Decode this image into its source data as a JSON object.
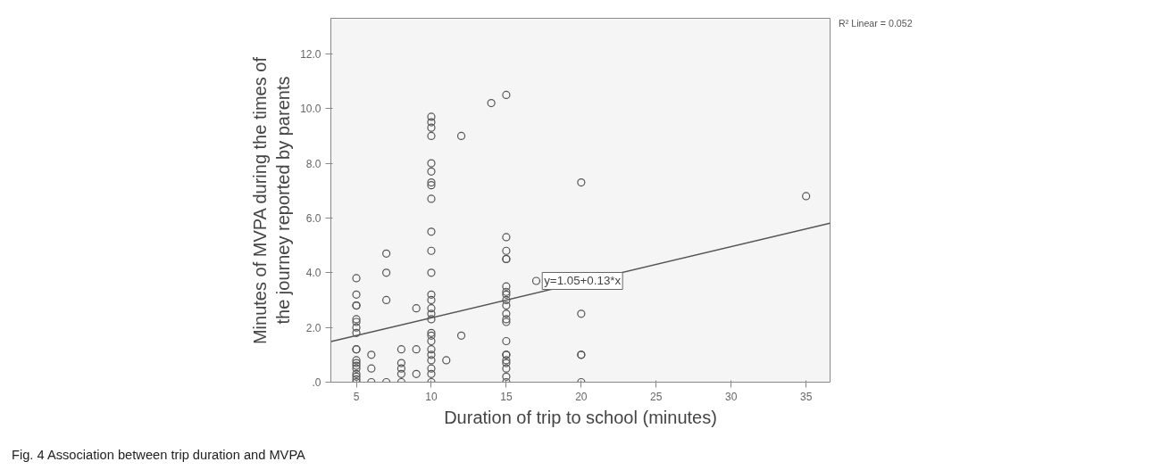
{
  "chart_data": {
    "type": "scatter",
    "xlabel": "Duration of trip to school (minutes)",
    "ylabel": "Minutes of MVPA during the times of\nthe journey reported by parents",
    "xlim": [
      3.3,
      36.6
    ],
    "ylim": [
      0,
      13.3
    ],
    "xticks": [
      5,
      10,
      15,
      20,
      25,
      30,
      35
    ],
    "yticks": [
      {
        "value": 0,
        "label": ".0"
      },
      {
        "value": 2,
        "label": "2.0"
      },
      {
        "value": 4,
        "label": "4.0"
      },
      {
        "value": 6,
        "label": "6.0"
      },
      {
        "value": 8,
        "label": "8.0"
      },
      {
        "value": 10,
        "label": "10.0"
      },
      {
        "value": 12,
        "label": "12.0"
      }
    ],
    "grid": false,
    "marker": "circle",
    "series": [
      {
        "color": "#555555",
        "x": [
          5,
          5,
          5,
          5,
          5,
          5,
          5,
          5,
          5,
          5,
          5,
          5,
          5,
          5,
          5,
          5,
          5,
          5,
          6,
          6,
          6,
          7,
          7,
          7,
          7,
          8,
          8,
          8,
          8,
          8,
          9,
          9,
          9,
          10,
          10,
          10,
          10,
          10,
          10,
          10,
          10,
          10,
          10,
          10,
          10,
          10,
          10,
          10,
          10,
          10,
          10,
          10,
          10,
          10,
          10,
          10,
          10,
          10,
          10,
          11,
          12,
          12,
          14,
          15,
          15,
          15,
          15,
          15,
          15,
          15,
          15,
          15,
          15,
          15,
          15,
          15,
          15,
          15,
          15,
          15,
          15,
          15,
          15,
          15,
          17,
          20,
          20,
          20,
          20,
          20,
          35
        ],
        "values": [
          3.8,
          3.2,
          2.8,
          2.8,
          2.3,
          2.2,
          2.0,
          1.8,
          1.2,
          1.2,
          0.8,
          0.7,
          0.6,
          0.5,
          0.3,
          0.2,
          0.1,
          0.0,
          1.0,
          0.5,
          0.0,
          4.7,
          4.0,
          3.0,
          0.0,
          1.2,
          0.7,
          0.5,
          0.3,
          0.0,
          2.7,
          1.2,
          0.3,
          9.7,
          9.5,
          9.3,
          9.0,
          8.0,
          7.7,
          7.3,
          7.2,
          6.7,
          5.5,
          4.8,
          4.0,
          3.2,
          3.0,
          2.7,
          2.5,
          2.3,
          1.8,
          1.7,
          1.5,
          1.2,
          1.0,
          0.8,
          0.5,
          0.3,
          0.0,
          0.8,
          9.0,
          1.7,
          10.2,
          10.5,
          5.3,
          4.8,
          4.5,
          4.5,
          3.5,
          3.3,
          3.2,
          3.0,
          2.8,
          2.5,
          2.3,
          2.2,
          1.5,
          1.0,
          1.0,
          0.8,
          0.7,
          0.5,
          0.2,
          0.0,
          3.7,
          7.3,
          2.5,
          1.0,
          1.0,
          0.0,
          6.8
        ]
      },
      {
        "type": "line",
        "color": "#555555",
        "x": [
          3.3,
          36.6
        ],
        "values": [
          1.48,
          5.81
        ],
        "marker": "none"
      }
    ],
    "annotations": [
      {
        "text": "y=1.05+0.13*x",
        "x": 17.4,
        "y": 3.7
      },
      "R² Linear = 0.052",
      "Fig. 4 Association between trip duration and MVPA"
    ]
  }
}
